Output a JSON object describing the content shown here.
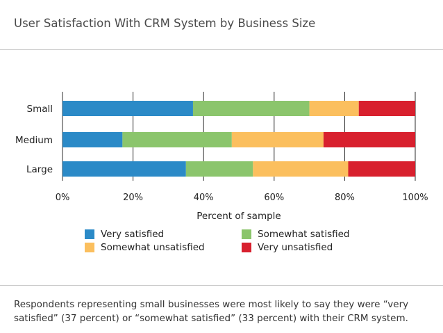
{
  "title": "User Satisfaction With CRM System by Business Size",
  "caption_lines": [
    "Respondents representing small businesses were most likely to say they were “very",
    "satisfied” (37 percent) or “somewhat satisfied” (33 percent) with their CRM system."
  ],
  "chart_data": {
    "type": "bar",
    "orientation": "horizontal",
    "stacked": true,
    "title": "User Satisfaction With CRM System by Business Size",
    "xlabel": "Percent of sample",
    "ylabel": "",
    "xlim": [
      0,
      100
    ],
    "x_ticks": [
      "0%",
      "20%",
      "40%",
      "60%",
      "80%",
      "100%"
    ],
    "categories": [
      "Small",
      "Medium",
      "Large"
    ],
    "series": [
      {
        "name": "Very satisfied",
        "color": "#2b8ac7",
        "values": [
          37,
          17,
          35
        ]
      },
      {
        "name": "Somewhat satisfied",
        "color": "#8bc56c",
        "values": [
          33,
          31,
          19
        ]
      },
      {
        "name": "Somewhat unsatisfied",
        "color": "#fbbf5e",
        "values": [
          14,
          26,
          27
        ]
      },
      {
        "name": "Very unsatisfied",
        "color": "#d8202e",
        "values": [
          16,
          26,
          19
        ]
      }
    ],
    "grid": "vertical",
    "legend_position": "bottom"
  }
}
